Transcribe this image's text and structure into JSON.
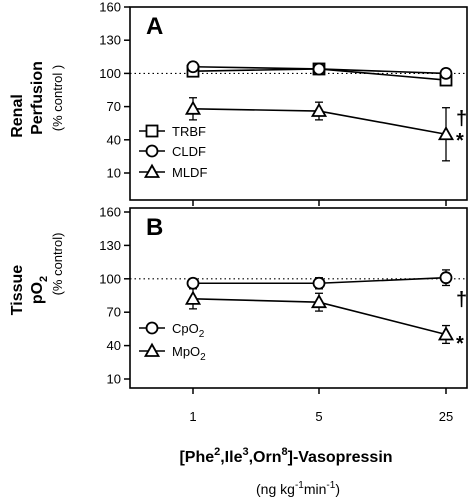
{
  "chart_data": [
    {
      "type": "line",
      "panel": "A",
      "ylabel_line1": "Renal",
      "ylabel_line2": "Perfusion",
      "ylabel_sub": "(% control )",
      "ylim": [
        10,
        160
      ],
      "yticks": [
        10,
        40,
        70,
        100,
        130,
        160
      ],
      "reference_line": 100,
      "x": [
        1,
        5,
        25
      ],
      "series": [
        {
          "name": "TRBF",
          "marker": "square",
          "values": [
            102,
            104,
            94
          ],
          "errors": [
            3,
            3,
            4
          ]
        },
        {
          "name": "CLDF",
          "marker": "circle",
          "values": [
            106,
            104,
            100
          ],
          "errors": [
            3,
            3,
            3
          ]
        },
        {
          "name": "MLDF",
          "marker": "triangle",
          "values": [
            68,
            66,
            45
          ],
          "errors": [
            10,
            8,
            24
          ]
        }
      ],
      "annotations": [
        {
          "text": "†",
          "series": "CLDF"
        },
        {
          "text": "*",
          "series": "MLDF"
        }
      ],
      "legend_placement": "bottom-left"
    },
    {
      "type": "line",
      "panel": "B",
      "ylabel_line1": "Tissue",
      "ylabel_line2_base": "pO",
      "ylabel_line2_sub": "2",
      "ylabel_sub": "(% control)",
      "ylim": [
        10,
        160
      ],
      "yticks": [
        10,
        40,
        70,
        100,
        130,
        160
      ],
      "reference_line": 100,
      "x": [
        1,
        5,
        25
      ],
      "series": [
        {
          "name_base": "CpO",
          "name_sub": "2",
          "marker": "circle",
          "values": [
            96,
            96,
            101
          ],
          "errors": [
            4,
            5,
            7
          ]
        },
        {
          "name_base": "MpO",
          "name_sub": "2",
          "marker": "triangle",
          "values": [
            82,
            79,
            50
          ],
          "errors": [
            9,
            8,
            8
          ]
        }
      ],
      "annotations": [
        {
          "text": "†",
          "series": "CpO2"
        },
        {
          "text": "*",
          "series": "MpO2"
        }
      ],
      "legend_placement": "bottom-left"
    }
  ],
  "xaxis": {
    "ticks": [
      "1",
      "5",
      "25"
    ],
    "label_parts": [
      "[Phe",
      "2",
      ",Ile",
      "3",
      ",Orn",
      "8",
      "]-Vasopressin"
    ],
    "unit_parts": [
      "(ng kg",
      "-1",
      "min",
      "-1",
      ")"
    ]
  }
}
